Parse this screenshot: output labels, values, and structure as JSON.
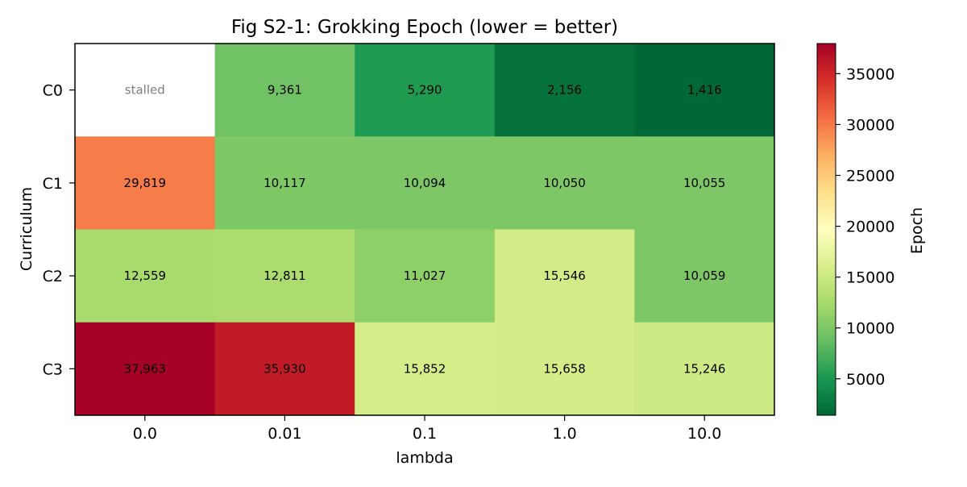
{
  "chart_data": {
    "type": "heatmap",
    "title": "Fig S2-1: Grokking Epoch (lower = better)",
    "xlabel": "lambda",
    "ylabel": "Curriculum",
    "x_categories": [
      "0.0",
      "0.01",
      "0.1",
      "1.0",
      "10.0"
    ],
    "y_categories": [
      "C0",
      "C1",
      "C2",
      "C3"
    ],
    "values": [
      [
        null,
        9361,
        5290,
        2156,
        1416
      ],
      [
        29819,
        10117,
        10094,
        10050,
        10055
      ],
      [
        12559,
        12811,
        11027,
        15546,
        10059
      ],
      [
        37963,
        35930,
        15852,
        15658,
        15246
      ]
    ],
    "missing_label": "stalled",
    "colorbar": {
      "label": "Epoch",
      "colormap": "RdYlGn_r",
      "range": [
        1416,
        37963
      ],
      "ticks": [
        5000,
        10000,
        15000,
        20000,
        25000,
        30000,
        35000
      ]
    }
  }
}
